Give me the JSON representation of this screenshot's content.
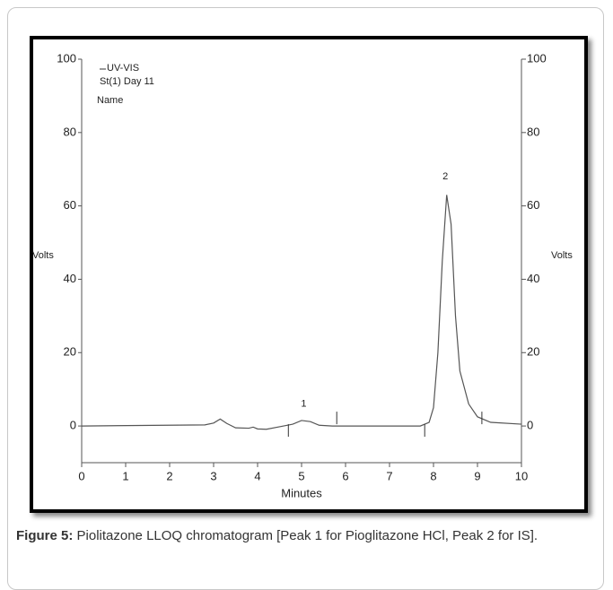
{
  "chart_data": {
    "type": "line",
    "legend": [
      "UV-VIS",
      "St(1) Day 11",
      "Name"
    ],
    "xlabel": "Minutes",
    "ylabel": "Volts",
    "y2label": "Volts",
    "xlim": [
      0,
      10
    ],
    "xticks": [
      0,
      1,
      2,
      3,
      4,
      5,
      6,
      7,
      8,
      9,
      10
    ],
    "ylim": [
      -10,
      100
    ],
    "yticks": [
      0,
      20,
      40,
      60,
      80,
      100
    ],
    "y2lim": [
      -10,
      100
    ],
    "y2ticks": [
      0,
      20,
      40,
      60,
      80,
      100
    ],
    "series": [
      {
        "color": "#555555",
        "x": [
          0,
          2.8,
          3.0,
          3.15,
          3.3,
          3.5,
          3.8,
          3.9,
          4.0,
          4.2,
          4.5,
          4.8,
          5.0,
          5.2,
          5.4,
          5.7,
          7.7,
          7.9,
          8.0,
          8.1,
          8.2,
          8.3,
          8.4,
          8.5,
          8.6,
          8.8,
          9.0,
          9.3,
          10
        ],
        "values": [
          0,
          0.3,
          0.8,
          1.9,
          0.7,
          -0.5,
          -0.6,
          -0.3,
          -0.8,
          -0.9,
          -0.2,
          0.5,
          1.5,
          1.2,
          0.2,
          0,
          0,
          1,
          5,
          20,
          45,
          63,
          55,
          30,
          15,
          6,
          2.5,
          1,
          0.5
        ]
      }
    ],
    "integration_marks": [
      4.7,
      5.8,
      7.8,
      9.1
    ],
    "annotations": [
      {
        "text": "1",
        "x": 5.05,
        "y": 6
      },
      {
        "text": "2",
        "x": 8.27,
        "y": 68
      }
    ]
  },
  "caption": {
    "label": "Figure 5:",
    "text": "Piolitazone LLOQ chromatogram [Peak 1 for Pioglitazone HCl, Peak 2 for IS]."
  }
}
